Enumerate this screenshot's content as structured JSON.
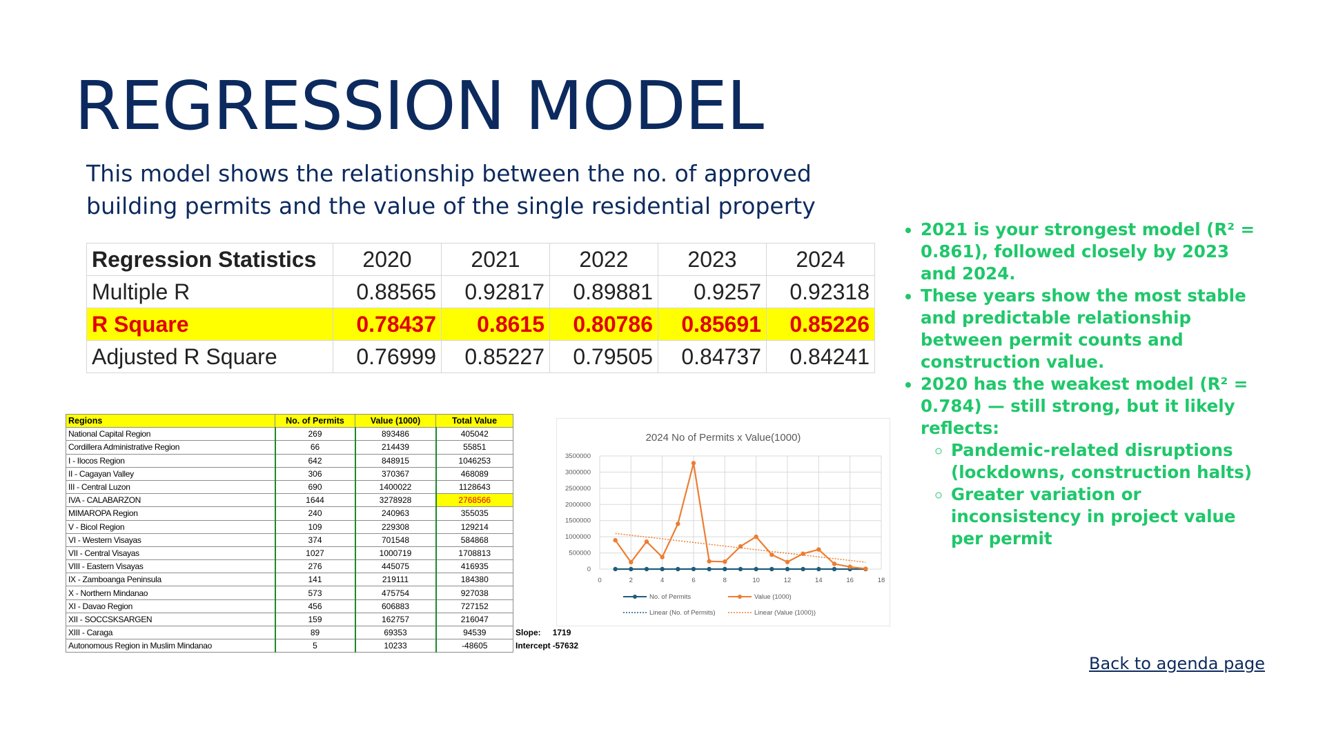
{
  "title": "REGRESSION MODEL",
  "subtitle": "This model shows the relationship between the no. of approved building permits and the value of the single residential property",
  "stats_table": {
    "header": [
      "Regression Statistics",
      "2020",
      "2021",
      "2022",
      "2023",
      "2024"
    ],
    "rows": [
      {
        "label": "Multiple R",
        "values": [
          "0.88565",
          "0.92817",
          "0.89881",
          "0.9257",
          "0.92318"
        ]
      },
      {
        "label": "R Square",
        "values": [
          "0.78437",
          "0.8615",
          "0.80786",
          "0.85691",
          "0.85226"
        ]
      },
      {
        "label": "Adjusted R Square",
        "values": [
          "0.76999",
          "0.85227",
          "0.79505",
          "0.84737",
          "0.84241"
        ]
      }
    ]
  },
  "region_table": {
    "header": [
      "Regions",
      "No. of Permits",
      "Value (1000)",
      "Total Value"
    ],
    "rows": [
      [
        "National Capital Region",
        "269",
        "893486",
        "405042"
      ],
      [
        "Cordillera Administrative Region",
        "66",
        "214439",
        "55851"
      ],
      [
        "I - Ilocos Region",
        "642",
        "848915",
        "1046253"
      ],
      [
        "II - Cagayan Valley",
        "306",
        "370367",
        "468089"
      ],
      [
        "III - Central Luzon",
        "690",
        "1400022",
        "1128643"
      ],
      [
        "IVA - CALABARZON",
        "1644",
        "3278928",
        "2768566"
      ],
      [
        "MIMAROPA Region",
        "240",
        "240963",
        "355035"
      ],
      [
        "V - Bicol Region",
        "109",
        "229308",
        "129214"
      ],
      [
        "VI - Western Visayas",
        "374",
        "701548",
        "584868"
      ],
      [
        "VII - Central Visayas",
        "1027",
        "1000719",
        "1708813"
      ],
      [
        "VIII - Eastern Visayas",
        "276",
        "445075",
        "416935"
      ],
      [
        "IX - Zamboanga Peninsula",
        "141",
        "219111",
        "184380"
      ],
      [
        "X - Northern Mindanao",
        "573",
        "475754",
        "927038"
      ],
      [
        "XI - Davao Region",
        "456",
        "606883",
        "727152"
      ],
      [
        "XII - SOCCSKSARGEN",
        "159",
        "162757",
        "216047"
      ],
      [
        "XIII - Caraga",
        "89",
        "69353",
        "94539"
      ],
      [
        "Autonomous Region in Muslim Mindanao",
        "5",
        "10233",
        "-48605"
      ]
    ],
    "slope_label": "Slope:",
    "slope_value": "1719",
    "intercept_label": "Intercept",
    "intercept_value": "-57632"
  },
  "chart_data": {
    "type": "line",
    "title": "2024 No of Permits x Value(1000)",
    "x": [
      1,
      2,
      3,
      4,
      5,
      6,
      7,
      8,
      9,
      10,
      11,
      12,
      13,
      14,
      15,
      16,
      17
    ],
    "series": [
      {
        "name": "No. of Permits",
        "color": "#1f5c7a",
        "values": [
          269,
          66,
          642,
          306,
          690,
          1644,
          240,
          109,
          374,
          1027,
          276,
          141,
          573,
          456,
          159,
          89,
          5
        ]
      },
      {
        "name": "Value (1000)",
        "color": "#ed7d31",
        "values": [
          893486,
          214439,
          848915,
          370367,
          1400022,
          3278928,
          240963,
          229308,
          701548,
          1000719,
          445075,
          219111,
          475754,
          606883,
          162757,
          69353,
          10233
        ]
      }
    ],
    "trendlines": [
      {
        "name": "Linear (No. of Permits)",
        "color": "#1f5c7a"
      },
      {
        "name": "Linear (Value (1000))",
        "color": "#ed7d31"
      }
    ],
    "xlim": [
      0,
      18
    ],
    "ylim": [
      0,
      3500000
    ],
    "x_ticks": [
      "0",
      "2",
      "4",
      "6",
      "8",
      "10",
      "12",
      "14",
      "16",
      "18"
    ],
    "y_ticks": [
      "0",
      "500000",
      "1000000",
      "1500000",
      "2000000",
      "2500000",
      "3000000",
      "3500000"
    ],
    "legend_position": "bottom",
    "grid": true
  },
  "bullets": [
    {
      "text": "2021 is your strongest model (R² = 0.861), followed closely by 2023 and 2024."
    },
    {
      "text": "These years show the most stable and predictable relationship between permit counts and construction value."
    },
    {
      "text": "2020 has the weakest model (R² = 0.784) — still strong, but it likely reflects:",
      "sub": [
        "Pandemic-related disruptions (lockdowns, construction halts)",
        "Greater variation or inconsistency in project value per permit"
      ]
    }
  ],
  "back_link": "Back to agenda page",
  "colors": {
    "title": "#0c2a5e",
    "bullets": "#1fc76a",
    "highlight": "#ffff00",
    "highlight_text": "#e00000"
  }
}
